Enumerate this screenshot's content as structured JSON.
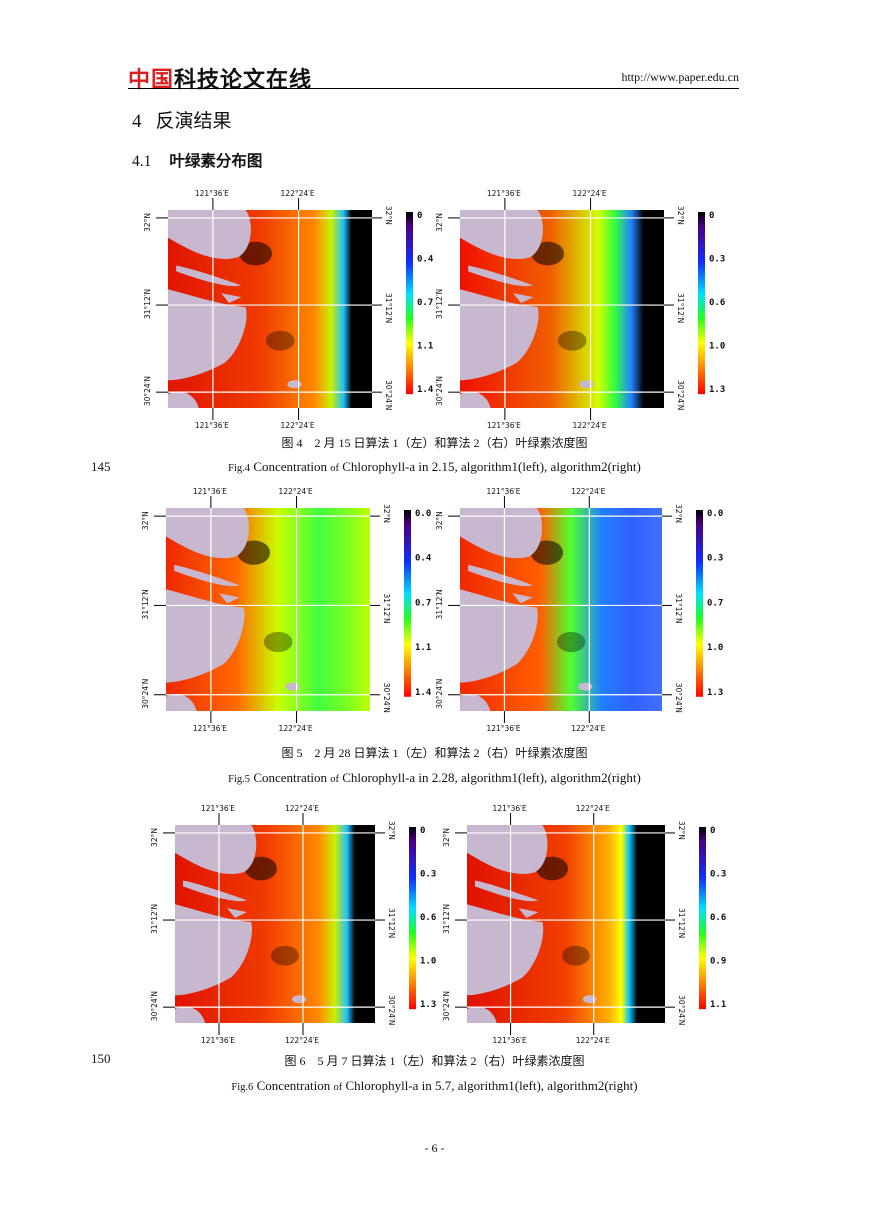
{
  "header": {
    "logo_red": "中国",
    "logo_black": "科技论文在线",
    "url": "http://www.paper.edu.cn"
  },
  "section": {
    "num": "4",
    "title": "反演结果"
  },
  "subsection": {
    "num": "4.1",
    "title": "叶绿素分布图"
  },
  "line_numbers": [
    "145",
    "150"
  ],
  "axis_labels": {
    "lon": [
      "121°36′E",
      "122°24′E"
    ],
    "lat": [
      "32°N",
      "31°12′N",
      "30°24′N"
    ]
  },
  "figures": [
    {
      "caption_cn": "图 4　2 月 15 日算法 1（左）和算法 2（右）叶绿素浓度图",
      "caption_en_prefix": "Fig.4",
      "caption_en_mid": "Concentration",
      "caption_en_of": "of",
      "caption_en_rest": "Chlorophyll-a in 2.15, algorithm1(left), algorithm2(right)",
      "left_scale": [
        "0",
        "0.4",
        "0.7",
        "1.1",
        "1.4"
      ],
      "right_scale": [
        "0",
        "0.3",
        "0.6",
        "1.0",
        "1.3"
      ]
    },
    {
      "caption_cn": "图 5　2 月 28 日算法 1（左）和算法 2（右）叶绿素浓度图",
      "caption_en_prefix": "Fig.5",
      "caption_en_mid": "Concentration",
      "caption_en_of": "of",
      "caption_en_rest": "Chlorophyll-a in 2.28, algorithm1(left), algorithm2(right)",
      "left_scale": [
        "0.0",
        "0.4",
        "0.7",
        "1.1",
        "1.4"
      ],
      "right_scale": [
        "0.0",
        "0.3",
        "0.7",
        "1.0",
        "1.3"
      ]
    },
    {
      "caption_cn": "图 6　5 月 7 日算法 1（左）和算法 2（右）叶绿素浓度图",
      "caption_en_prefix": "Fig.6",
      "caption_en_mid": "Concentration",
      "caption_en_of": "of",
      "caption_en_rest": "Chlorophyll-a in 5.7, algorithm1(left), algorithm2(right)",
      "left_scale": [
        "0",
        "0.3",
        "0.6",
        "1.0",
        "1.3"
      ],
      "right_scale": [
        "0",
        "0.3",
        "0.6",
        "0.9",
        "1.1"
      ]
    }
  ],
  "page_number": "- 6 -",
  "colors": {
    "land": "#c8b8cf",
    "logo_red": "#d81e1e"
  }
}
